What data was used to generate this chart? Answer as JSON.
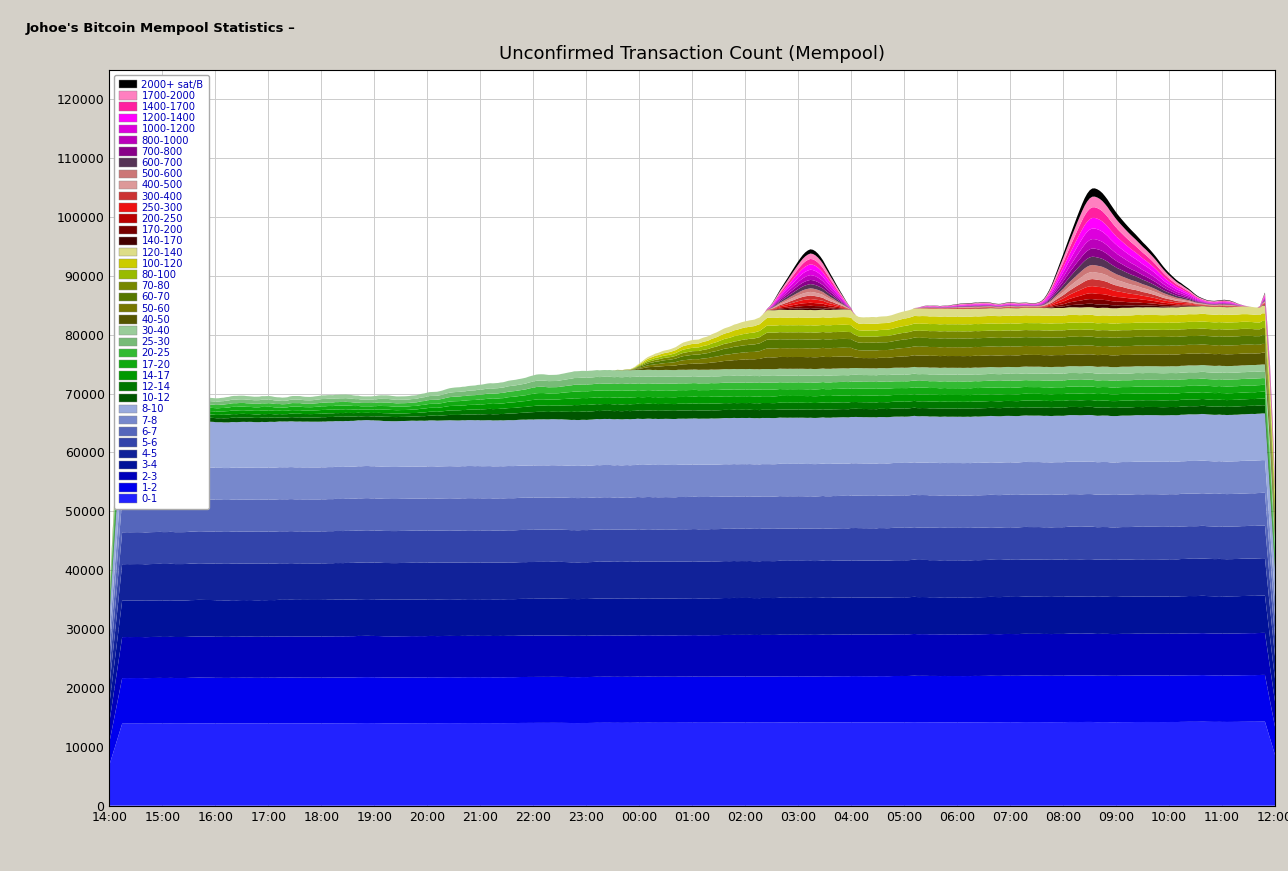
{
  "title": "Unconfirmed Transaction Count (Mempool)",
  "xlabel_ticks": [
    "14:00",
    "15:00",
    "16:00",
    "17:00",
    "18:00",
    "19:00",
    "20:00",
    "21:00",
    "22:00",
    "23:00",
    "00:00",
    "01:00",
    "02:00",
    "03:00",
    "04:00",
    "05:00",
    "06:00",
    "07:00",
    "08:00",
    "09:00",
    "10:00",
    "11:00",
    "12:00"
  ],
  "ylim": [
    0,
    125000
  ],
  "yticks": [
    0,
    10000,
    20000,
    30000,
    40000,
    50000,
    60000,
    70000,
    80000,
    90000,
    100000,
    110000,
    120000
  ],
  "layers": [
    {
      "label": "2000+ sat/B",
      "color": "#000000"
    },
    {
      "label": "1700-2000",
      "color": "#ff80c0"
    },
    {
      "label": "1400-1700",
      "color": "#ff20a0"
    },
    {
      "label": "1200-1400",
      "color": "#ff00ff"
    },
    {
      "label": "1000-1200",
      "color": "#dd00dd"
    },
    {
      "label": "800-1000",
      "color": "#bb00bb"
    },
    {
      "label": "700-800",
      "color": "#880088"
    },
    {
      "label": "600-700",
      "color": "#553355"
    },
    {
      "label": "500-600",
      "color": "#cc7777"
    },
    {
      "label": "400-500",
      "color": "#dd9999"
    },
    {
      "label": "300-400",
      "color": "#cc3333"
    },
    {
      "label": "250-300",
      "color": "#ee1111"
    },
    {
      "label": "200-250",
      "color": "#bb0000"
    },
    {
      "label": "170-200",
      "color": "#770000"
    },
    {
      "label": "140-170",
      "color": "#440000"
    },
    {
      "label": "120-140",
      "color": "#dddd88"
    },
    {
      "label": "100-120",
      "color": "#cccc00"
    },
    {
      "label": "80-100",
      "color": "#99bb00"
    },
    {
      "label": "70-80",
      "color": "#778800"
    },
    {
      "label": "60-70",
      "color": "#557700"
    },
    {
      "label": "50-60",
      "color": "#777700"
    },
    {
      "label": "40-50",
      "color": "#555500"
    },
    {
      "label": "30-40",
      "color": "#99cc99"
    },
    {
      "label": "25-30",
      "color": "#77bb77"
    },
    {
      "label": "20-25",
      "color": "#33bb33"
    },
    {
      "label": "17-20",
      "color": "#11aa11"
    },
    {
      "label": "14-17",
      "color": "#009900"
    },
    {
      "label": "12-14",
      "color": "#007700"
    },
    {
      "label": "10-12",
      "color": "#005500"
    },
    {
      "label": "8-10",
      "color": "#99aadd"
    },
    {
      "label": "7-8",
      "color": "#7788cc"
    },
    {
      "label": "6-7",
      "color": "#5566bb"
    },
    {
      "label": "5-6",
      "color": "#3344aa"
    },
    {
      "label": "4-5",
      "color": "#112299"
    },
    {
      "label": "3-4",
      "color": "#001199"
    },
    {
      "label": "2-3",
      "color": "#0000bb"
    },
    {
      "label": "1-2",
      "color": "#0000ee"
    },
    {
      "label": "0-1",
      "color": "#2222ff"
    }
  ],
  "n_points": 460,
  "header_bg": "#d4d0c8"
}
